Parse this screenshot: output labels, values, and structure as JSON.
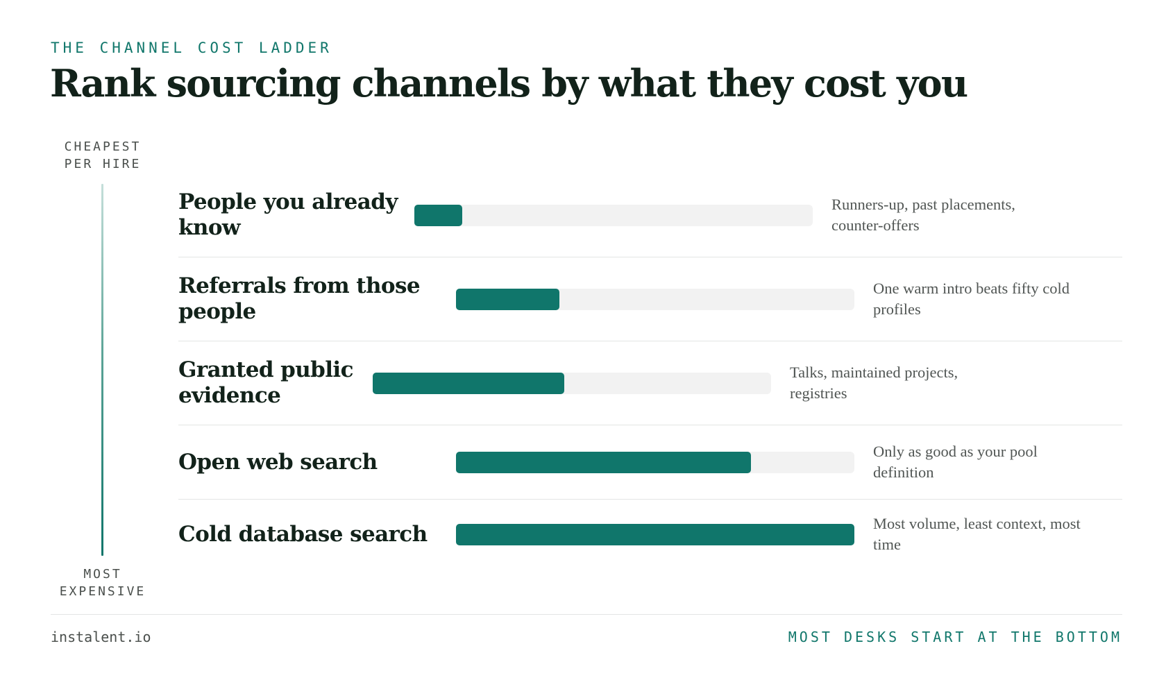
{
  "header": {
    "eyebrow": "THE CHANNEL COST LADDER",
    "title": "Rank sourcing channels by what they cost you"
  },
  "axis": {
    "top_label": "CHEAPEST\nPER HIRE",
    "bottom_label": "MOST\nEXPENSIVE"
  },
  "colors": {
    "accent": "#10766b",
    "track": "#f2f2f2",
    "title": "#12221a",
    "note": "#505553"
  },
  "chart_data": {
    "type": "bar",
    "orientation": "horizontal",
    "categories": [
      "People you already know",
      "Referrals from those people",
      "Granted public evidence",
      "Open web search",
      "Cold database search"
    ],
    "values": [
      0.12,
      0.26,
      0.48,
      0.74,
      1.0
    ],
    "notes": [
      "Runners-up, past placements, counter-offers",
      "One warm intro beats fifty cold profiles",
      "Talks, maintained projects, registries",
      "Only as good as your pool definition",
      "Most volume, least context, most time"
    ],
    "title": "",
    "xlabel": "",
    "ylabel": "",
    "xlim": [
      0,
      1
    ],
    "grid": false,
    "legend": "none"
  },
  "footer": {
    "left": "instalent.io",
    "right": "MOST DESKS START AT THE BOTTOM"
  }
}
